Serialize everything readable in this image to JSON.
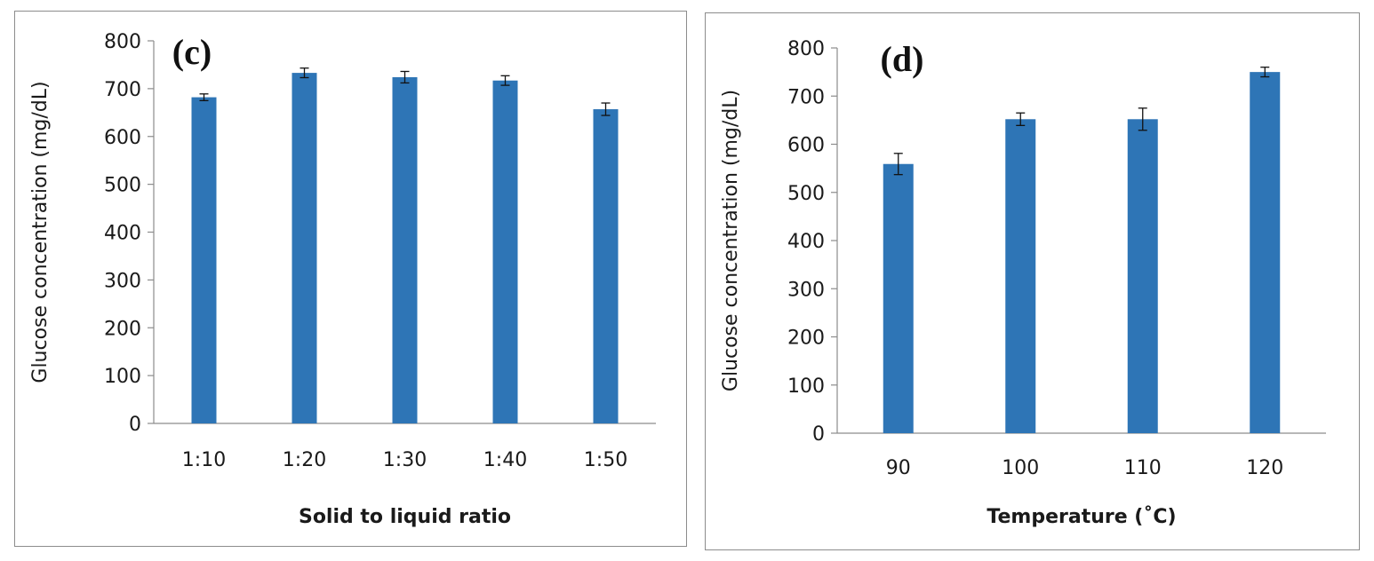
{
  "chart_data": [
    {
      "type": "bar",
      "panel_label": "(c)",
      "categories": [
        "1:10",
        "1:20",
        "1:30",
        "1:40",
        "1:50"
      ],
      "values": [
        682,
        733,
        724,
        717,
        657
      ],
      "errors": [
        7,
        10,
        12,
        10,
        13
      ],
      "xlabel": "Solid to liquid ratio",
      "ylabel": "Glucose concentration (mg/dL)",
      "ylim": [
        0,
        800
      ],
      "yticks": [
        0,
        100,
        200,
        300,
        400,
        500,
        600,
        700,
        800
      ],
      "grid": false,
      "bar_color": "#2E75B6"
    },
    {
      "type": "bar",
      "panel_label": "(d)",
      "categories": [
        "90",
        "100",
        "110",
        "120"
      ],
      "values": [
        559,
        652,
        652,
        750
      ],
      "errors": [
        22,
        13,
        23,
        10
      ],
      "xlabel": "Temperature (˚C)",
      "ylabel": "Glucose concentration (mg/dL)",
      "ylim": [
        0,
        800
      ],
      "yticks": [
        0,
        100,
        200,
        300,
        400,
        500,
        600,
        700,
        800
      ],
      "grid": false,
      "bar_color": "#2E75B6"
    }
  ]
}
